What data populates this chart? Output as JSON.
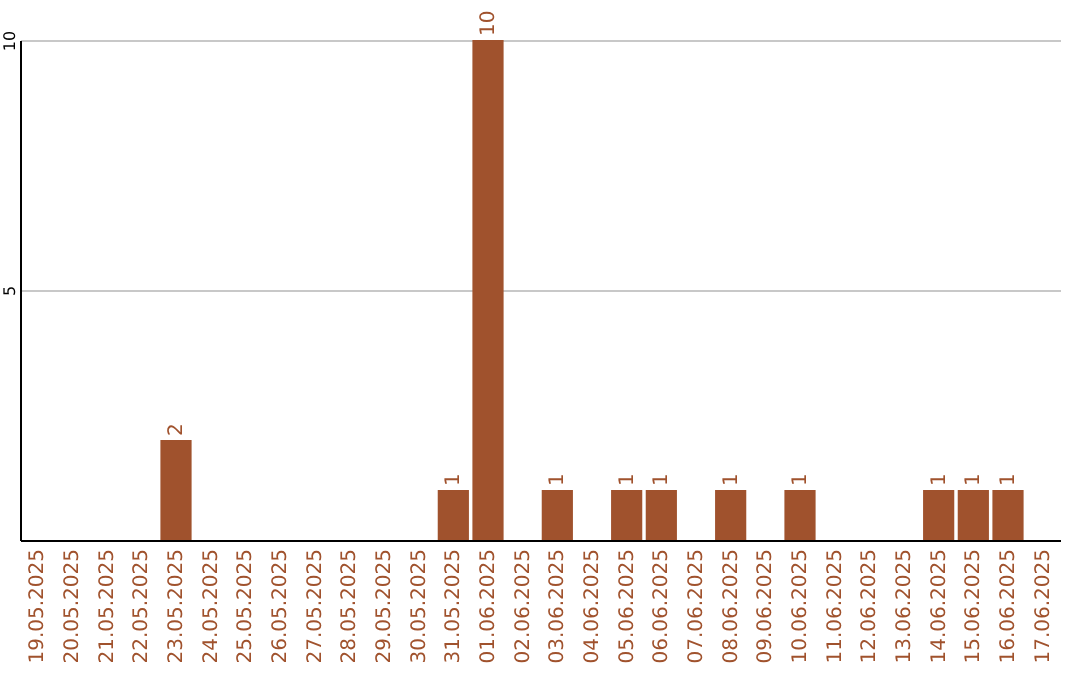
{
  "chart_data": {
    "type": "bar",
    "categories": [
      "19.05.2025",
      "20.05.2025",
      "21.05.2025",
      "22.05.2025",
      "23.05.2025",
      "24.05.2025",
      "25.05.2025",
      "26.05.2025",
      "27.05.2025",
      "28.05.2025",
      "29.05.2025",
      "30.05.2025",
      "31.05.2025",
      "01.06.2025",
      "02.06.2025",
      "03.06.2025",
      "04.06.2025",
      "05.06.2025",
      "06.06.2025",
      "07.06.2025",
      "08.06.2025",
      "09.06.2025",
      "10.06.2025",
      "11.06.2025",
      "12.06.2025",
      "13.06.2025",
      "14.06.2025",
      "15.06.2025",
      "16.06.2025",
      "17.06.2025"
    ],
    "values": [
      0,
      0,
      0,
      0,
      2,
      0,
      0,
      0,
      0,
      0,
      0,
      0,
      1,
      10,
      0,
      1,
      0,
      1,
      1,
      0,
      1,
      0,
      1,
      0,
      0,
      0,
      1,
      1,
      1,
      0
    ],
    "value_labels": [
      null,
      null,
      null,
      null,
      "2",
      null,
      null,
      null,
      null,
      null,
      null,
      null,
      "1",
      "10",
      null,
      "1",
      null,
      "1",
      "1",
      null,
      "1",
      null,
      "1",
      null,
      null,
      null,
      "1",
      "1",
      "1",
      null
    ],
    "color": "#a0522d",
    "ylim": [
      0,
      10
    ],
    "yticks": [
      5,
      10
    ],
    "grid": "y"
  }
}
